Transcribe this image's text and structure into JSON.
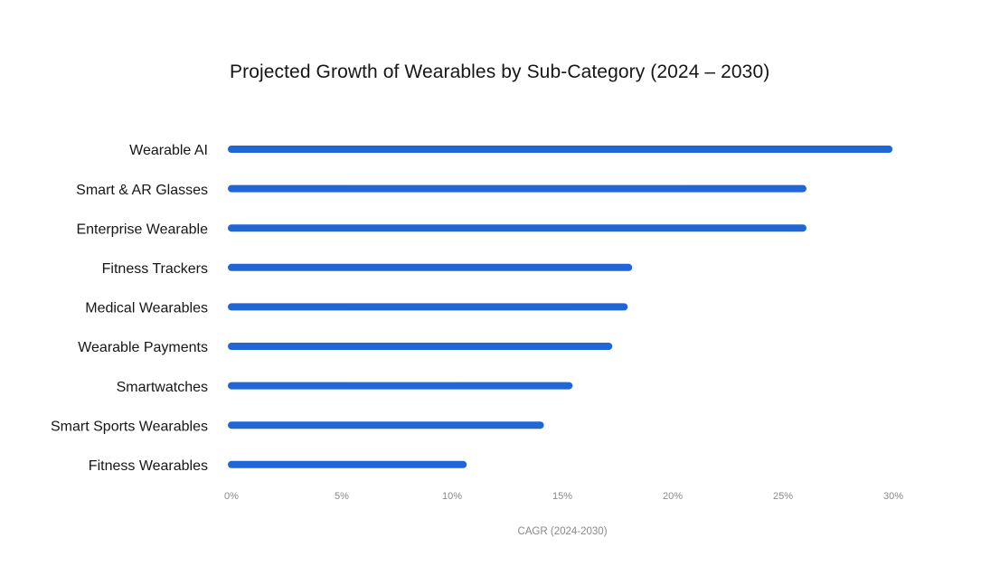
{
  "chart_data": {
    "type": "bar",
    "orientation": "horizontal",
    "title": "Projected Growth of Wearables by Sub-Category (2024 – 2030)",
    "xlabel": "CAGR (2024-2030)",
    "ylabel": "",
    "categories": [
      "Wearable AI",
      "Smart & AR Glasses",
      "Enterprise Wearable",
      "Fitness Trackers",
      "Medical Wearables",
      "Wearable Payments",
      "Smartwatches",
      "Smart Sports Wearables",
      "Fitness Wearables"
    ],
    "values": [
      29.8,
      25.9,
      25.9,
      18.0,
      17.8,
      17.1,
      15.3,
      14.0,
      10.5
    ],
    "xlim": [
      0,
      30
    ],
    "x_ticks": [
      0,
      5,
      10,
      15,
      20,
      25,
      30
    ],
    "x_tick_labels": [
      "0%",
      "5%",
      "10%",
      "15%",
      "20%",
      "25%",
      "30%"
    ],
    "grid": false,
    "legend": "none",
    "bar_color": "#2166d6"
  }
}
